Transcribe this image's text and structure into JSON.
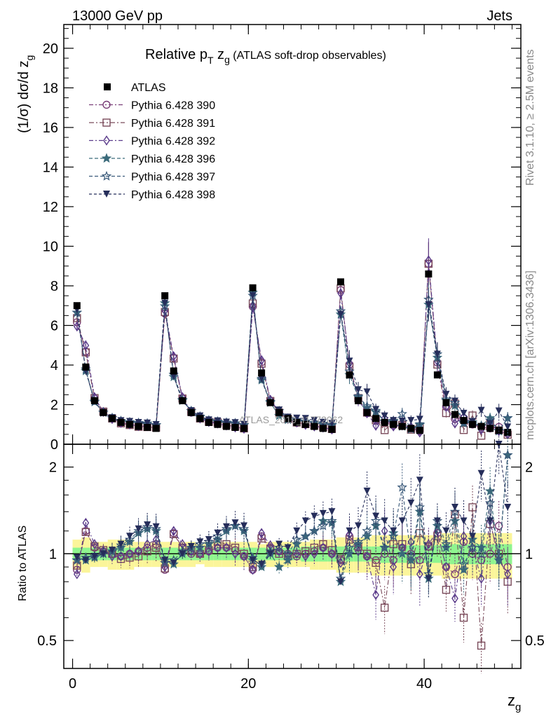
{
  "header": {
    "left": "13000 GeV pp",
    "right": "Jets"
  },
  "side_labels": {
    "rivet": "Rivet 3.1.10, ≥ 2.5M events",
    "mcplots": "mcplots.cern.ch [arXiv:1306.3436]"
  },
  "watermark": "ATLAS_2019_I1772062",
  "chart_data": {
    "type": "scatter",
    "title_prefix": "Relative p",
    "title_sub_T": "T",
    "title_mid": " z",
    "title_sub_g": "g",
    "title_suffix": " (ATLAS soft-drop observables)",
    "ylabel_main": "(1/σ) dσ/d z",
    "ylabel_main_sub": "g",
    "ylabel_ratio": "Ratio to ATLAS",
    "xlabel": "z",
    "xlabel_sub": "g",
    "xlim": [
      -1,
      51
    ],
    "ylim_main": [
      0,
      21.2
    ],
    "ylim_ratio": [
      0.4,
      2.4
    ],
    "main_yticks": [
      "0",
      "2",
      "4",
      "6",
      "8",
      "10",
      "12",
      "14",
      "16",
      "18",
      "20"
    ],
    "ratio_yticks": [
      "0.5",
      "1",
      "2"
    ],
    "xticks": [
      "0",
      "20",
      "40"
    ],
    "x": [
      0.5,
      1.5,
      2.5,
      3.5,
      4.5,
      5.5,
      6.5,
      7.5,
      8.5,
      9.5,
      10.5,
      11.5,
      12.5,
      13.5,
      14.5,
      15.5,
      16.5,
      17.5,
      18.5,
      19.5,
      20.5,
      21.5,
      22.5,
      23.5,
      24.5,
      25.5,
      26.5,
      27.5,
      28.5,
      29.5,
      30.5,
      31.5,
      32.5,
      33.5,
      34.5,
      35.5,
      36.5,
      37.5,
      38.5,
      39.5,
      40.5,
      41.5,
      42.5,
      43.5,
      44.5,
      45.5,
      46.5,
      47.5,
      48.5,
      49.5
    ],
    "data": {
      "name": "ATLAS",
      "values": [
        7.0,
        3.9,
        2.2,
        1.6,
        1.3,
        1.1,
        1.0,
        0.9,
        0.85,
        0.8,
        7.5,
        3.7,
        2.2,
        1.6,
        1.3,
        1.1,
        1.0,
        0.9,
        0.85,
        0.8,
        7.9,
        3.6,
        2.1,
        1.6,
        1.3,
        1.1,
        1.0,
        0.9,
        0.8,
        0.75,
        8.2,
        3.5,
        2.2,
        1.6,
        1.3,
        1.1,
        1.0,
        0.9,
        0.8,
        0.7,
        8.6,
        3.5,
        2.1,
        1.5,
        1.2,
        1.0,
        0.9,
        0.8,
        0.7,
        0.6
      ],
      "ratio_band_stat": [
        0.05,
        0.05,
        0.05,
        0.05,
        0.05,
        0.05,
        0.05,
        0.05,
        0.05,
        0.05,
        0.05,
        0.05,
        0.05,
        0.05,
        0.05,
        0.05,
        0.05,
        0.05,
        0.05,
        0.05,
        0.05,
        0.05,
        0.05,
        0.05,
        0.05,
        0.05,
        0.06,
        0.06,
        0.06,
        0.06,
        0.06,
        0.06,
        0.06,
        0.06,
        0.06,
        0.07,
        0.07,
        0.07,
        0.07,
        0.07,
        0.07,
        0.07,
        0.08,
        0.08,
        0.08,
        0.08,
        0.08,
        0.08,
        0.08,
        0.08
      ],
      "ratio_band_total": [
        0.12,
        0.14,
        0.1,
        0.1,
        0.12,
        0.12,
        0.12,
        0.1,
        0.1,
        0.1,
        0.1,
        0.1,
        0.1,
        0.1,
        0.08,
        0.1,
        0.1,
        0.1,
        0.1,
        0.1,
        0.1,
        0.08,
        0.1,
        0.1,
        0.1,
        0.1,
        0.1,
        0.12,
        0.12,
        0.12,
        0.14,
        0.14,
        0.14,
        0.14,
        0.16,
        0.16,
        0.16,
        0.16,
        0.16,
        0.16,
        0.16,
        0.16,
        0.18,
        0.18,
        0.18,
        0.18,
        0.18,
        0.18,
        0.18,
        0.18
      ]
    },
    "series": [
      {
        "name": "Pythia 6.428 390",
        "color": "#7a3e78",
        "marker": "circle",
        "dash": "6,3,2,3",
        "ratio": [
          0.88,
          1.2,
          1.05,
          1.02,
          1.0,
          0.98,
          1.0,
          1.02,
          1.05,
          1.08,
          0.88,
          1.18,
          1.05,
          1.0,
          1.0,
          1.02,
          1.05,
          1.05,
          1.03,
          0.98,
          0.88,
          1.15,
          1.05,
          1.02,
          1.0,
          0.98,
          1.0,
          1.02,
          1.05,
          1.0,
          0.95,
          1.15,
          1.05,
          0.98,
          0.95,
          1.0,
          0.95,
          1.05,
          1.0,
          0.95,
          1.06,
          1.18,
          0.9,
          0.85,
          1.1,
          1.0,
          0.95,
          1.0,
          1.25,
          0.9
        ]
      },
      {
        "name": "Pythia 6.428 391",
        "color": "#7a4a5a",
        "marker": "square",
        "dash": "7,3,2,3",
        "ratio": [
          0.91,
          1.19,
          1.06,
          1.03,
          1.0,
          0.96,
          0.97,
          0.98,
          1.02,
          1.05,
          0.89,
          1.17,
          1.05,
          1.02,
          1.0,
          1.03,
          1.1,
          1.08,
          1.05,
          1.0,
          0.9,
          1.13,
          1.04,
          1.0,
          0.98,
          1.0,
          1.02,
          1.05,
          1.08,
          1.03,
          0.96,
          1.12,
          1.06,
          1.0,
          0.93,
          0.65,
          1.08,
          1.08,
          0.92,
          1.18,
          1.06,
          1.15,
          0.75,
          1.37,
          0.6,
          1.45,
          0.48,
          1.27,
          1.0,
          0.8
        ]
      },
      {
        "name": "Pythia 6.428 392",
        "color": "#5a3a8a",
        "marker": "diamond",
        "dash": "6,3,2,3",
        "ratio": [
          0.85,
          1.28,
          1.08,
          1.02,
          0.98,
          0.98,
          1.0,
          1.02,
          1.08,
          1.12,
          0.9,
          1.2,
          1.08,
          1.02,
          1.0,
          1.02,
          1.05,
          1.05,
          1.0,
          0.98,
          0.88,
          1.18,
          1.07,
          1.02,
          0.98,
          1.0,
          0.98,
          1.0,
          1.05,
          1.0,
          0.93,
          1.17,
          1.02,
          0.98,
          0.72,
          1.2,
          0.9,
          1.05,
          1.1,
          0.85,
          1.08,
          1.2,
          0.9,
          0.7,
          1.15,
          1.05,
          0.82,
          1.3,
          0.95,
          0.85
        ]
      },
      {
        "name": "Pythia 6.428 396",
        "color": "#3a6a7a",
        "marker": "star",
        "dash": "5,3",
        "ratio": [
          0.95,
          0.95,
          0.97,
          1.0,
          1.02,
          1.05,
          1.1,
          1.18,
          1.22,
          1.2,
          0.95,
          0.92,
          1.0,
          1.05,
          1.05,
          1.08,
          1.12,
          1.2,
          1.25,
          1.2,
          0.97,
          0.9,
          1.0,
          0.9,
          0.95,
          1.08,
          1.15,
          1.2,
          1.3,
          1.28,
          0.8,
          1.0,
          1.08,
          1.15,
          1.25,
          1.05,
          1.18,
          1.0,
          0.95,
          1.4,
          0.82,
          1.25,
          1.05,
          1.3,
          0.88,
          1.12,
          1.05,
          1.65,
          0.95,
          2.2
        ]
      },
      {
        "name": "Pythia 6.428 397",
        "color": "#3a5a7a",
        "marker": "star-open",
        "dash": "5,3",
        "ratio": [
          0.95,
          0.97,
          0.98,
          1.0,
          1.02,
          1.07,
          1.12,
          1.2,
          1.24,
          1.22,
          0.93,
          0.95,
          1.02,
          1.05,
          1.08,
          1.1,
          1.15,
          1.22,
          1.25,
          1.22,
          0.95,
          0.92,
          1.02,
          1.05,
          1.0,
          1.12,
          1.15,
          1.2,
          1.25,
          1.3,
          0.82,
          1.05,
          1.1,
          1.2,
          1.3,
          1.05,
          1.15,
          1.7,
          0.98,
          1.45,
          0.85,
          1.3,
          1.08,
          1.4,
          0.92,
          1.05,
          1.0,
          1.5,
          0.98,
          2.2
        ]
      },
      {
        "name": "Pythia 6.428 398",
        "color": "#252d5a",
        "marker": "triangle-down",
        "dash": "4,3",
        "ratio": [
          0.97,
          0.95,
          0.98,
          1.0,
          1.03,
          1.08,
          1.15,
          1.22,
          1.26,
          1.24,
          0.95,
          0.93,
          1.0,
          1.06,
          1.1,
          1.12,
          1.18,
          1.24,
          1.28,
          1.25,
          0.95,
          0.92,
          1.0,
          1.08,
          1.05,
          1.2,
          1.3,
          1.35,
          1.38,
          1.4,
          0.8,
          1.2,
          1.25,
          1.65,
          1.35,
          1.3,
          1.2,
          1.3,
          1.5,
          1.8,
          0.82,
          1.3,
          1.2,
          1.45,
          1.3,
          1.15,
          1.9,
          1.3,
          2.4,
          1.45
        ]
      }
    ]
  }
}
